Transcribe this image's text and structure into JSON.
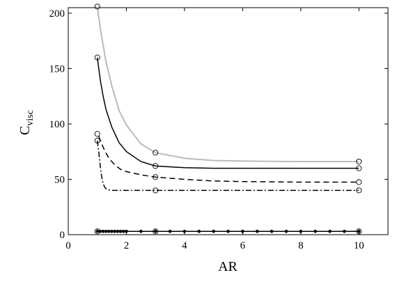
{
  "chart_data": {
    "type": "line",
    "title": "",
    "xlabel": "AR",
    "ylabel": {
      "main": "C",
      "subscript": "visc"
    },
    "xlim": [
      0,
      11
    ],
    "ylim": [
      0,
      205
    ],
    "xticks": [
      0,
      2,
      4,
      6,
      8,
      10
    ],
    "yticks": [
      0,
      50,
      100,
      150,
      200
    ],
    "grid": false,
    "legend": "none",
    "series": [
      {
        "style": "solid",
        "color": "#bbbbbb",
        "x": [
          1.0,
          1.1,
          1.2,
          1.3,
          1.5,
          1.75,
          2.0,
          2.5,
          3.0,
          4.0,
          5.0,
          6.0,
          7.0,
          8.0,
          9.0,
          10.0
        ],
        "y": [
          206,
          187,
          171,
          156,
          134,
          112,
          99,
          82,
          74,
          69,
          67,
          66.5,
          66.2,
          66,
          66,
          66
        ],
        "markers_x": [
          1,
          3,
          10
        ],
        "markers_y": [
          206,
          74,
          66
        ],
        "marker": "open-circle"
      },
      {
        "style": "solid",
        "color": "#000000",
        "x": [
          1.0,
          1.1,
          1.2,
          1.3,
          1.5,
          1.75,
          2.0,
          2.5,
          3.0,
          4.0,
          5.0,
          6.0,
          7.0,
          8.0,
          9.0,
          10.0
        ],
        "y": [
          160,
          140,
          125,
          113,
          97,
          83,
          75,
          66,
          62,
          60.5,
          60,
          60,
          60,
          60,
          60,
          60
        ],
        "markers_x": [
          1,
          3,
          10
        ],
        "markers_y": [
          160,
          62,
          60
        ],
        "marker": "open-circle"
      },
      {
        "style": "dashed",
        "color": "#000000",
        "x": [
          1.05,
          1.15,
          1.25,
          1.4,
          1.6,
          1.8,
          2.0,
          2.5,
          3.0,
          4.0,
          5.0,
          6.0,
          7.0,
          8.0,
          9.0,
          10.0
        ],
        "y": [
          89,
          82,
          76,
          69,
          63,
          59,
          57,
          54,
          52,
          50,
          48.5,
          48,
          47.7,
          47.5,
          47.5,
          47.5
        ],
        "markers_x": [
          1,
          3,
          10
        ],
        "markers_y": [
          91,
          52,
          47.5
        ],
        "marker": "open-circle"
      },
      {
        "style": "dashdot",
        "color": "#000000",
        "x": [
          1.0,
          1.05,
          1.1,
          1.15,
          1.2,
          1.25,
          1.3,
          1.4,
          1.5,
          2.0,
          3.0,
          4.0,
          6.0,
          8.0,
          10.0
        ],
        "y": [
          85,
          75,
          62,
          52,
          46,
          43,
          41.5,
          40.5,
          40,
          40,
          40,
          40,
          40,
          40,
          40
        ],
        "markers_x": [
          1,
          3,
          10
        ],
        "markers_y": [
          85,
          40,
          40
        ],
        "marker": "open-circle"
      },
      {
        "style": "solid",
        "color": "#000000",
        "x": [
          1.0,
          10.0
        ],
        "y": [
          3,
          3
        ],
        "markers_x": [
          1.0,
          1.1,
          1.2,
          1.3,
          1.4,
          1.5,
          1.6,
          1.7,
          1.8,
          1.9,
          2.0,
          2.5,
          3.0,
          3.5,
          4.0,
          4.5,
          5.0,
          5.5,
          6.0,
          6.5,
          7.0,
          7.5,
          8.0,
          8.5,
          9.0,
          9.5,
          10.0
        ],
        "markers_y": [
          3,
          3,
          3,
          3,
          3,
          3,
          3,
          3,
          3,
          3,
          3,
          3,
          3,
          3,
          3,
          3,
          3,
          3,
          3,
          3,
          3,
          3,
          3,
          3,
          3,
          3,
          3
        ],
        "marker": "filled-dot",
        "open_markers_x": [
          1,
          3,
          10
        ],
        "open_markers_y": [
          3,
          3,
          3
        ]
      }
    ]
  }
}
